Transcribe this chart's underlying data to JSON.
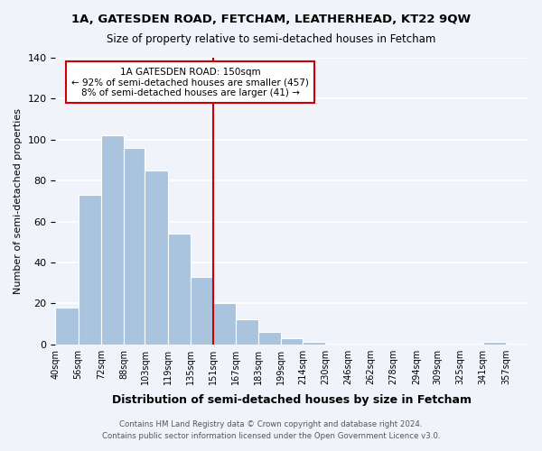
{
  "title": "1A, GATESDEN ROAD, FETCHAM, LEATHERHEAD, KT22 9QW",
  "subtitle": "Size of property relative to semi-detached houses in Fetcham",
  "xlabel": "Distribution of semi-detached houses by size in Fetcham",
  "ylabel": "Number of semi-detached properties",
  "bin_labels": [
    "40sqm",
    "56sqm",
    "72sqm",
    "88sqm",
    "103sqm",
    "119sqm",
    "135sqm",
    "151sqm",
    "167sqm",
    "183sqm",
    "199sqm",
    "214sqm",
    "230sqm",
    "246sqm",
    "262sqm",
    "278sqm",
    "294sqm",
    "309sqm",
    "325sqm",
    "341sqm",
    "357sqm"
  ],
  "bin_edges": [
    40,
    56,
    72,
    88,
    103,
    119,
    135,
    151,
    167,
    183,
    199,
    214,
    230,
    246,
    262,
    278,
    294,
    309,
    325,
    341,
    357
  ],
  "bar_heights": [
    18,
    73,
    102,
    96,
    85,
    54,
    33,
    20,
    12,
    6,
    3,
    1,
    0,
    0,
    0,
    0,
    0,
    0,
    0,
    1
  ],
  "bar_color": "#aac4de",
  "bar_edge_color": "#ffffff",
  "vline_x": 151,
  "vline_color": "#cc0000",
  "annotation_title": "1A GATESDEN ROAD: 150sqm",
  "annotation_line1": "← 92% of semi-detached houses are smaller (457)",
  "annotation_line2": "8% of semi-detached houses are larger (41) →",
  "annotation_box_color": "#ffffff",
  "annotation_box_edge": "#cc0000",
  "ylim": [
    0,
    140
  ],
  "yticks": [
    0,
    20,
    40,
    60,
    80,
    100,
    120,
    140
  ],
  "footer_line1": "Contains HM Land Registry data © Crown copyright and database right 2024.",
  "footer_line2": "Contains public sector information licensed under the Open Government Licence v3.0.",
  "bg_color": "#f0f4fa",
  "grid_color": "#ffffff"
}
